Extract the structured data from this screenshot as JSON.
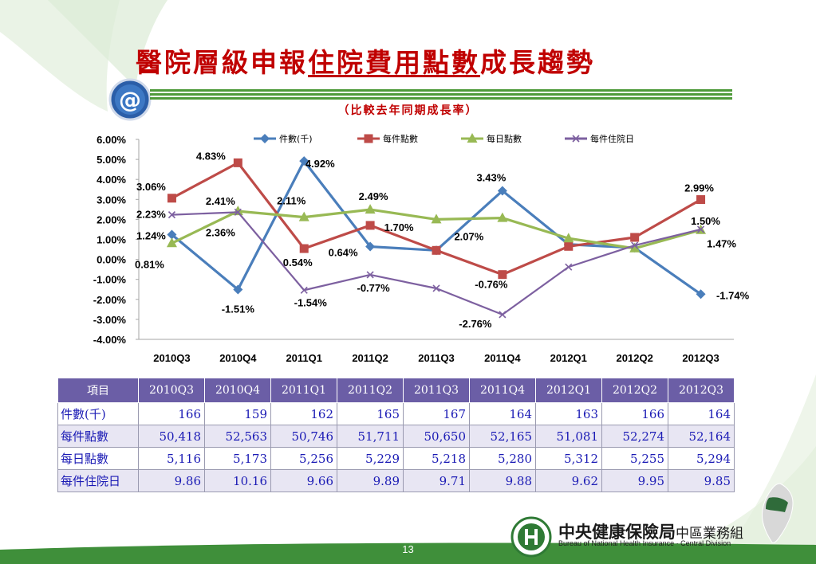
{
  "slide": {
    "title_part1": "醫院層級申報",
    "title_part2": "住院費用點數",
    "title_part3": "成長趨勢",
    "subtitle": "（比較去年同期成長率）",
    "page_number": "13",
    "org_cn_main": "中央健康保險局",
    "org_cn_sub": "中區業務組",
    "org_en": "Bureau of National Health Insurance · Central Division",
    "badge_symbol": "@"
  },
  "colors": {
    "title": "#c00000",
    "green_accent": "#4f9a3a",
    "table_header": "#6b5ea6",
    "table_text": "#1b1bb5",
    "footer": "#3f8f3a"
  },
  "chart_data": {
    "type": "line",
    "categories": [
      "2010Q3",
      "2010Q4",
      "2011Q1",
      "2011Q2",
      "2011Q3",
      "2011Q4",
      "2012Q1",
      "2012Q2",
      "2012Q3"
    ],
    "ylim": [
      -4,
      6
    ],
    "yticks": [
      "6.00%",
      "5.00%",
      "4.00%",
      "3.00%",
      "2.00%",
      "1.00%",
      "0.00%",
      "-1.00%",
      "-2.00%",
      "-3.00%",
      "-4.00%"
    ],
    "legend_position": "top",
    "grid": false,
    "series": [
      {
        "name": "件數(千)",
        "color": "#4a7ebb",
        "marker": "diamond",
        "values": [
          1.24,
          -1.51,
          4.92,
          0.64,
          0.45,
          3.43,
          0.75,
          0.58,
          -1.74
        ]
      },
      {
        "name": "每件點數",
        "color": "#be4b48",
        "marker": "square",
        "values": [
          3.06,
          4.83,
          0.54,
          1.7,
          0.45,
          -0.76,
          0.65,
          1.1,
          2.99
        ]
      },
      {
        "name": "每日點數",
        "color": "#98b954",
        "marker": "triangle",
        "values": [
          0.81,
          2.41,
          2.11,
          2.49,
          2.0,
          2.07,
          1.05,
          0.55,
          1.47
        ]
      },
      {
        "name": "每件住院日",
        "color": "#7d60a0",
        "marker": "x",
        "values": [
          2.23,
          2.36,
          -1.54,
          -0.77,
          -1.45,
          -2.76,
          -0.38,
          0.7,
          1.5
        ]
      }
    ],
    "data_labels": [
      "3.06%",
      "4.83%",
      "4.92%",
      "3.43%",
      "2.99%",
      "2.23%",
      "2.41%",
      "2.11%",
      "2.49%",
      "1.70%",
      "1.50%",
      "1.24%",
      "2.36%",
      "2.07%",
      "1.47%",
      "0.81%",
      "0.54%",
      "0.64%",
      "-0.77%",
      "-0.76%",
      "-1.74%",
      "-1.51%",
      "-1.54%",
      "-2.76%"
    ]
  },
  "table": {
    "header_label": "項目",
    "columns": [
      "2010Q3",
      "2010Q4",
      "2011Q1",
      "2011Q2",
      "2011Q3",
      "2011Q4",
      "2012Q1",
      "2012Q2",
      "2012Q3"
    ],
    "rows": [
      {
        "label": "件數(千)",
        "values": [
          "166",
          "159",
          "162",
          "165",
          "167",
          "164",
          "163",
          "166",
          "164"
        ]
      },
      {
        "label": "每件點數",
        "values": [
          "50,418",
          "52,563",
          "50,746",
          "51,711",
          "50,650",
          "52,165",
          "51,081",
          "52,274",
          "52,164"
        ]
      },
      {
        "label": "每日點數",
        "values": [
          "5,116",
          "5,173",
          "5,256",
          "5,229",
          "5,218",
          "5,280",
          "5,312",
          "5,255",
          "5,294"
        ]
      },
      {
        "label": "每件住院日",
        "values": [
          "9.86",
          "10.16",
          "9.66",
          "9.89",
          "9.71",
          "9.88",
          "9.62",
          "9.95",
          "9.85"
        ]
      }
    ]
  }
}
